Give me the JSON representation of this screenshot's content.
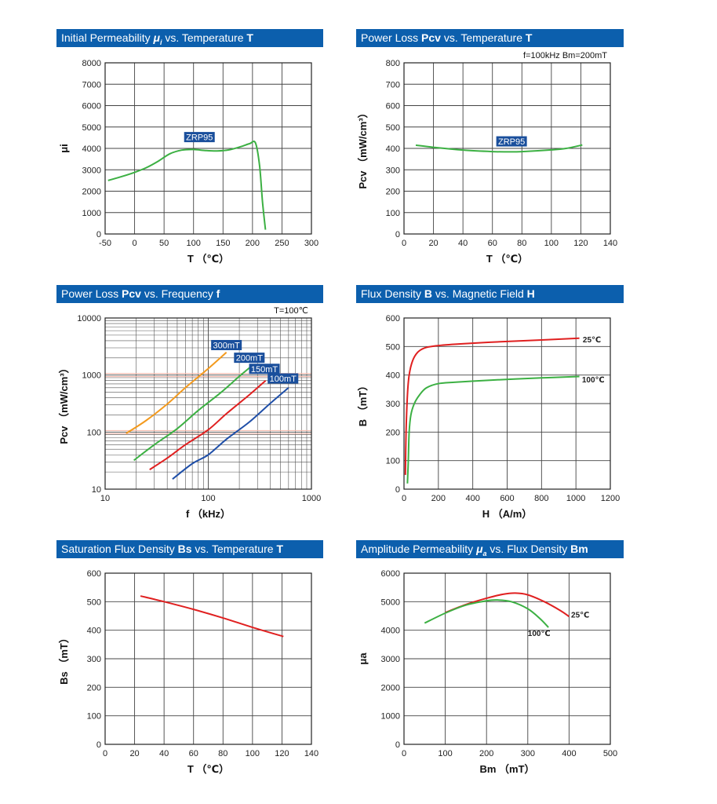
{
  "panels": [
    {
      "header": {
        "pre": "Initial Permeability ",
        "sym": "μ",
        "sub": "i",
        "mid": " vs. Temperature ",
        "bold": "T"
      },
      "chart_data": {
        "type": "line",
        "xlim": [
          -50,
          300
        ],
        "ylim": [
          0,
          8000
        ],
        "xticks": [
          -50,
          0,
          50,
          100,
          150,
          200,
          250,
          300
        ],
        "yticks": [
          0,
          1000,
          2000,
          3000,
          4000,
          5000,
          6000,
          7000,
          8000
        ],
        "xlabel": "T （℃）",
        "ylabel": "μi",
        "series": [
          {
            "name": "ZRP95",
            "color": "#3cb043",
            "x": [
              -45,
              -20,
              0,
              20,
              40,
              60,
              80,
              100,
              120,
              140,
              160,
              180,
              195,
              205,
              212,
              217,
              222
            ],
            "y": [
              2500,
              2700,
              2880,
              3100,
              3400,
              3750,
              3920,
              3950,
              3900,
              3880,
              3930,
              4080,
              4220,
              4260,
              3200,
              1500,
              200
            ]
          }
        ]
      },
      "labels": [
        {
          "text": "ZRP95",
          "x": 110,
          "y": 4400,
          "color": "#1a4f9c"
        }
      ]
    },
    {
      "header": {
        "pre": "Power Loss ",
        "sym2": "Pcv",
        "mid": " vs. Temperature ",
        "bold": "T"
      },
      "chart_data": {
        "type": "line",
        "xlim": [
          0,
          140
        ],
        "ylim": [
          0,
          800
        ],
        "xticks": [
          0,
          20,
          40,
          60,
          80,
          100,
          120,
          140
        ],
        "yticks": [
          0,
          100,
          200,
          300,
          400,
          500,
          600,
          700,
          800
        ],
        "xlabel": "T （℃）",
        "ylabel": "Pcv （mW/cm³）",
        "note": "f=100kHz   Bm=200mT",
        "series": [
          {
            "name": "ZRP95",
            "color": "#3cb043",
            "x": [
              8,
              20,
              40,
              60,
              70,
              80,
              100,
              110,
              121
            ],
            "y": [
              415,
              405,
              392,
              385,
              384,
              385,
              393,
              400,
              416
            ]
          }
        ]
      },
      "labels": [
        {
          "text": "ZRP95",
          "x": 73,
          "y": 420,
          "color": "#1a4f9c"
        }
      ]
    },
    {
      "header": {
        "pre": "Power Loss ",
        "sym2": "Pcv",
        "mid": " vs. Frequency ",
        "bold": "f"
      },
      "chart_data": {
        "type": "line",
        "xscale": "log",
        "yscale": "log",
        "xlim": [
          10,
          1000
        ],
        "ylim": [
          10,
          10000
        ],
        "xticks": [
          10,
          100,
          1000
        ],
        "yticks": [
          10,
          100,
          1000,
          10000
        ],
        "xlabel": "f （kHz）",
        "ylabel": "Pcv （mW/cm³）",
        "note": "T=100℃",
        "series": [
          {
            "name": "300mT",
            "color": "#f39a1e",
            "x": [
              16,
              25,
              40,
              60,
              100,
              150
            ],
            "y": [
              95,
              160,
              310,
              600,
              1300,
              2500
            ]
          },
          {
            "name": "200mT",
            "color": "#3cb043",
            "x": [
              19,
              30,
              50,
              80,
              130,
              200,
              270
            ],
            "y": [
              32,
              60,
              115,
              240,
              480,
              950,
              1500
            ]
          },
          {
            "name": "150mT",
            "color": "#e02020",
            "x": [
              27,
              40,
              60,
              100,
              150,
              250,
              360
            ],
            "y": [
              22,
              35,
              60,
              110,
              210,
              450,
              800
            ]
          },
          {
            "name": "100mT",
            "color": "#1f4fa8",
            "x": [
              45,
              70,
              100,
              150,
              250,
              400,
              600
            ],
            "y": [
              15,
              28,
              40,
              75,
              150,
              320,
              600
            ]
          }
        ]
      },
      "labels": [
        {
          "text": "300mT",
          "x": 150,
          "y": 3000,
          "color": "#1a4f9c"
        },
        {
          "text": "200mT",
          "x": 250,
          "y": 1800,
          "color": "#1a4f9c"
        },
        {
          "text": "150mT",
          "x": 350,
          "y": 1150,
          "color": "#1a4f9c"
        },
        {
          "text": "100mT",
          "x": 530,
          "y": 780,
          "color": "#1a4f9c"
        }
      ]
    },
    {
      "header": {
        "pre": "Flux Density ",
        "sym2": "B",
        "mid": " vs. Magnetic Field ",
        "bold": "H"
      },
      "chart_data": {
        "type": "line",
        "xlim": [
          0,
          1200
        ],
        "ylim": [
          0,
          600
        ],
        "xticks": [
          0,
          200,
          400,
          600,
          800,
          1000,
          1200
        ],
        "yticks": [
          0,
          100,
          200,
          300,
          400,
          500,
          600
        ],
        "xlabel": "H （A/m）",
        "ylabel": "B （mT）",
        "series": [
          {
            "name": "25℃",
            "color": "#e02020",
            "x": [
              8,
              12,
              20,
              30,
              50,
              80,
              120,
              180,
              300,
              500,
              800,
              1020
            ],
            "y": [
              50,
              200,
              330,
              400,
              450,
              480,
              495,
              502,
              508,
              515,
              523,
              529
            ]
          },
          {
            "name": "100℃",
            "color": "#3cb043",
            "x": [
              20,
              25,
              30,
              40,
              60,
              90,
              130,
              200,
              300,
              500,
              800,
              1020
            ],
            "y": [
              20,
              100,
              200,
              260,
              300,
              330,
              355,
              370,
              375,
              382,
              390,
              395
            ]
          }
        ]
      },
      "labels": [
        {
          "text": "25℃",
          "x": 1040,
          "y": 515,
          "color": "#222222"
        },
        {
          "text": "100℃",
          "x": 1035,
          "y": 375,
          "color": "#222222"
        }
      ]
    },
    {
      "header": {
        "pre": "Saturation Flux Density ",
        "sym2": "Bs",
        "mid": " vs. Temperature ",
        "bold": "T"
      },
      "chart_data": {
        "type": "line",
        "xlim": [
          0,
          140
        ],
        "ylim": [
          0,
          600
        ],
        "xticks": [
          0,
          20,
          40,
          60,
          80,
          100,
          120,
          140
        ],
        "yticks": [
          0,
          100,
          200,
          300,
          400,
          500,
          600
        ],
        "xlabel": "T （℃）",
        "ylabel": "Bs （mT）",
        "series": [
          {
            "name": "Bs",
            "color": "#e02020",
            "x": [
              24,
              40,
              60,
              80,
              100,
              121
            ],
            "y": [
              520,
              500,
              473,
              443,
              410,
              378
            ]
          }
        ]
      },
      "labels": []
    },
    {
      "header": {
        "pre": "Amplitude Permeability ",
        "sym": "μ",
        "sub": "a",
        "mid": " vs. Flux Density ",
        "bold": "Bm"
      },
      "chart_data": {
        "type": "line",
        "xlim": [
          0,
          500
        ],
        "ylim": [
          0,
          6000
        ],
        "xticks": [
          0,
          100,
          200,
          300,
          400,
          500
        ],
        "yticks": [
          0,
          1000,
          2000,
          3000,
          4000,
          5000,
          6000
        ],
        "xlabel": "Bm （mT）",
        "ylabel": "μa",
        "series": [
          {
            "name": "25℃",
            "color": "#e02020",
            "x": [
              100,
              150,
              200,
              240,
              270,
              300,
              340,
              380,
              400
            ],
            "y": [
              4620,
              4900,
              5120,
              5260,
              5300,
              5240,
              5000,
              4680,
              4480
            ]
          },
          {
            "name": "100℃",
            "color": "#3cb043",
            "x": [
              50,
              100,
              150,
              200,
              225,
              260,
              300,
              330,
              350
            ],
            "y": [
              4250,
              4600,
              4880,
              5030,
              5060,
              5000,
              4750,
              4400,
              4100
            ]
          }
        ]
      },
      "labels": [
        {
          "text": "25℃",
          "x": 405,
          "y": 4450,
          "color": "#222222"
        },
        {
          "text": "100℃",
          "x": 300,
          "y": 3800,
          "color": "#222222"
        }
      ]
    }
  ]
}
